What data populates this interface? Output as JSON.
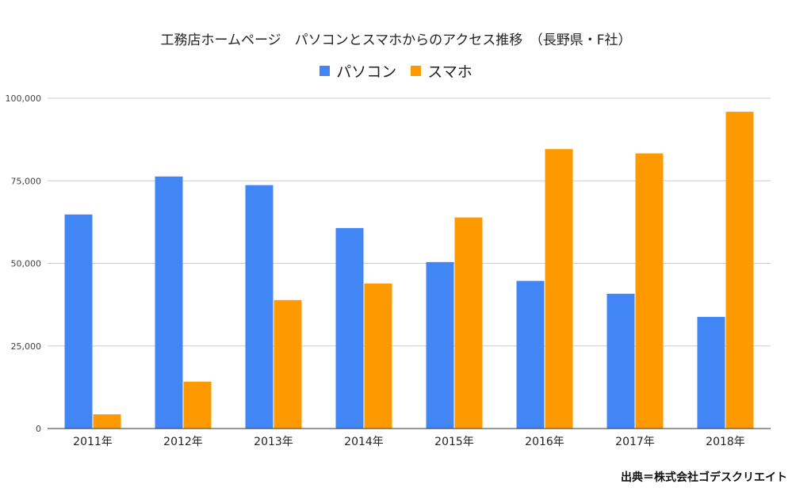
{
  "chart_data": {
    "type": "bar",
    "title": "工務店ホームページ　パソコンとスマホからのアクセス推移　（長野県・F社）",
    "categories": [
      "2011年",
      "2012年",
      "2013年",
      "2014年",
      "2015年",
      "2016年",
      "2017年",
      "2018年"
    ],
    "series": [
      {
        "name": "パソコン",
        "color": "#4285f4",
        "values": [
          64800,
          76300,
          73700,
          60700,
          50400,
          44700,
          40800,
          33800
        ]
      },
      {
        "name": "スマホ",
        "color": "#ff9900",
        "values": [
          4300,
          14200,
          38900,
          43900,
          63900,
          84600,
          83300,
          95900
        ]
      }
    ],
    "ylim": [
      0,
      100000
    ],
    "yticks": [
      0,
      25000,
      50000,
      75000,
      100000
    ],
    "ytick_labels": [
      "0",
      "25,000",
      "50,000",
      "75,000",
      "100,000"
    ],
    "grid": true,
    "legend_position": "top-center"
  },
  "source": "出典＝株式会社ゴデスクリエイト"
}
